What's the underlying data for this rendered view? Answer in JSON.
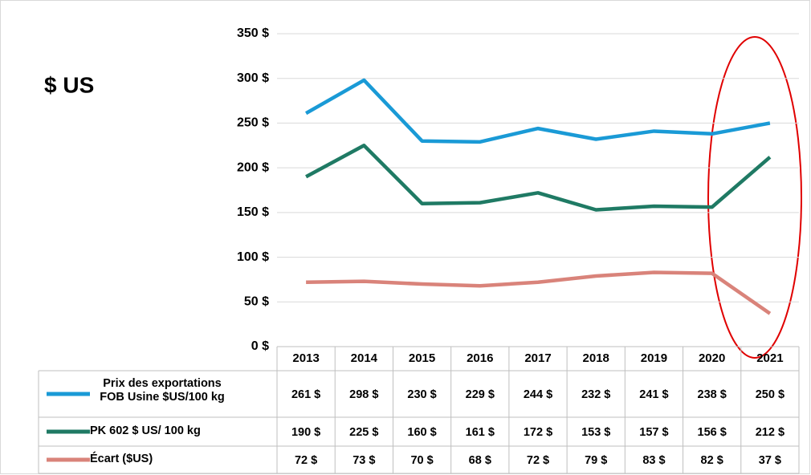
{
  "chart_data": {
    "type": "line",
    "title": "$ US",
    "categories": [
      "2013",
      "2014",
      "2015",
      "2016",
      "2017",
      "2018",
      "2019",
      "2020",
      "2021"
    ],
    "series": [
      {
        "name": "Prix des exportations FOB Usine $US/100 kg",
        "color": "#1a9ad6",
        "values": [
          261,
          298,
          230,
          229,
          244,
          232,
          241,
          238,
          250
        ],
        "value_labels": [
          "261 $",
          "298 $",
          "230 $",
          "229 $",
          "244 $",
          "232 $",
          "241 $",
          "238 $",
          "250 $"
        ]
      },
      {
        "name": "PK 602 $ US/ 100 kg",
        "color": "#1f7a64",
        "values": [
          190,
          225,
          160,
          161,
          172,
          153,
          157,
          156,
          212
        ],
        "value_labels": [
          "190 $",
          "225 $",
          "160 $",
          "161 $",
          "172 $",
          "153 $",
          "157 $",
          "156 $",
          "212 $"
        ]
      },
      {
        "name": "Écart ($US)",
        "color": "#d9837a",
        "values": [
          72,
          73,
          70,
          68,
          72,
          79,
          83,
          82,
          37
        ],
        "value_labels": [
          "72 $",
          "73 $",
          "70 $",
          "68 $",
          "72 $",
          "79 $",
          "83 $",
          "82 $",
          "37 $"
        ]
      }
    ],
    "ylim": [
      0,
      350
    ],
    "yticks": [
      {
        "value": 0,
        "label": "0 $"
      },
      {
        "value": 50,
        "label": "50 $"
      },
      {
        "value": 100,
        "label": "100 $"
      },
      {
        "value": 150,
        "label": "150 $"
      },
      {
        "value": 200,
        "label": "200 $"
      },
      {
        "value": 250,
        "label": "250 $"
      },
      {
        "value": 300,
        "label": "300 $"
      },
      {
        "value": 350,
        "label": "350 $"
      }
    ],
    "grid": true
  }
}
